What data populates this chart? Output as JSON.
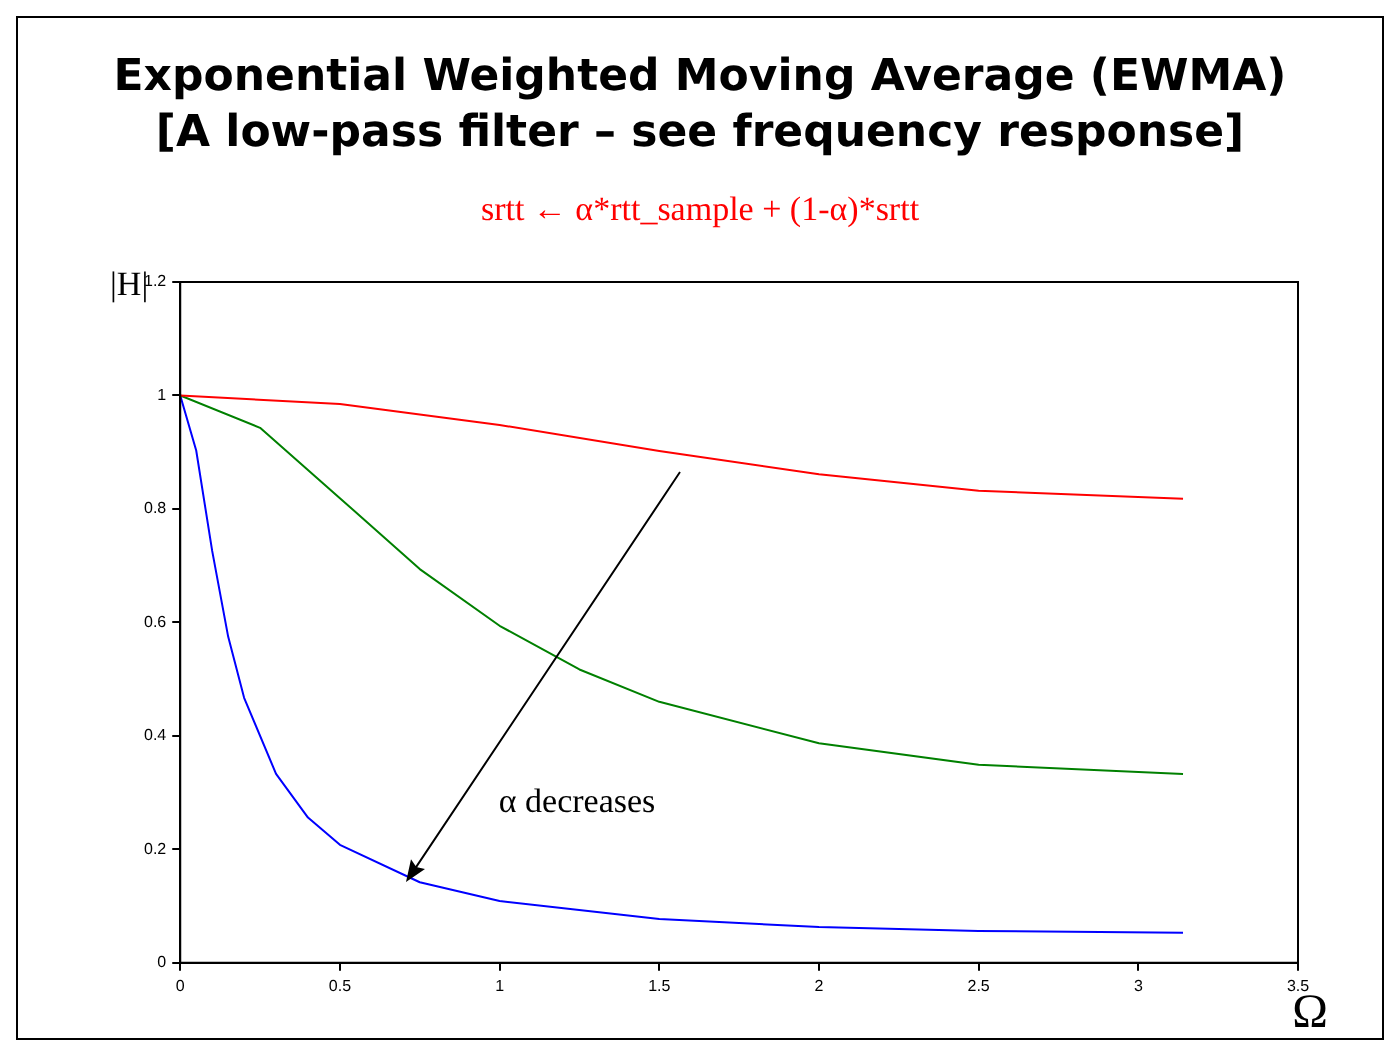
{
  "chart_data": {
    "type": "line",
    "title": "Exponential Weighted Moving Average (EWMA)\n[A low-pass filter – see frequency response]",
    "subtitle": "srtt ← α*rtt_sample + (1-α)*srtt",
    "xlabel": "Ω",
    "ylabel": "|H|",
    "annotations": [
      "α decreases"
    ],
    "xlim": [
      0,
      3.5
    ],
    "xticks": [
      0,
      0.5,
      1,
      1.5,
      2,
      2.5,
      3,
      3.5
    ],
    "ylim": [
      0,
      1.2
    ],
    "yticks": [
      0,
      0.2,
      0.4,
      0.6,
      0.8,
      1,
      1.2
    ],
    "grid": false,
    "legend": false,
    "marker": "none",
    "line_style": "solid",
    "series": [
      {
        "color": "#ff0000",
        "x": [
          0,
          0.5,
          1,
          1.5,
          2,
          2.5,
          3.14
        ],
        "values": [
          1,
          0.985,
          0.948,
          0.902,
          0.861,
          0.832,
          0.818
        ]
      },
      {
        "color": "#008000",
        "x": [
          0,
          0.25,
          0.5,
          0.75,
          1,
          1.25,
          1.5,
          2,
          2.5,
          3.14
        ],
        "values": [
          1,
          0.943,
          0.819,
          0.694,
          0.594,
          0.517,
          0.46,
          0.387,
          0.349,
          0.333
        ]
      },
      {
        "color": "#0000ff",
        "x": [
          0,
          0.05,
          0.1,
          0.15,
          0.2,
          0.3,
          0.4,
          0.5,
          0.75,
          1,
          1.5,
          2,
          2.5,
          3.14
        ],
        "values": [
          1,
          0.903,
          0.726,
          0.575,
          0.467,
          0.333,
          0.256,
          0.208,
          0.142,
          0.109,
          0.077,
          0.063,
          0.056,
          0.053
        ]
      }
    ]
  }
}
